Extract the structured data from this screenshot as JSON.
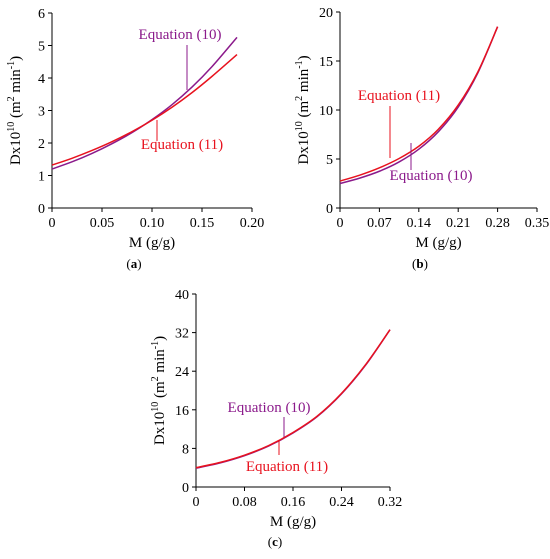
{
  "colors": {
    "equation_10": "#8B1A8B",
    "equation_11": "#E8121E",
    "axis": "#000000"
  },
  "chart_data": [
    {
      "type": "line",
      "panel_caption": "a",
      "xlabel": "M (g/g)",
      "ylabel_prefix": "Dx10",
      "ylabel_exp": "10",
      "ylabel_unit": " (m",
      "ylabel_unit_exp": "2",
      "ylabel_unit_mid": " min",
      "ylabel_unit_exp2": "-1",
      "ylabel_close": ")",
      "xlim": [
        0,
        0.2
      ],
      "ylim": [
        0,
        6
      ],
      "xticks": [
        "0",
        "0.05",
        "0.10",
        "0.15",
        "0.20"
      ],
      "yticks": [
        "0",
        "1",
        "2",
        "3",
        "4",
        "5",
        "6"
      ],
      "series": [
        {
          "name": "Equation (10)",
          "x": [
            0,
            0.02,
            0.04,
            0.06,
            0.08,
            0.1,
            0.12,
            0.14,
            0.16,
            0.185
          ],
          "y": [
            1.2,
            1.42,
            1.68,
            1.98,
            2.32,
            2.72,
            3.18,
            3.72,
            4.35,
            5.25
          ]
        },
        {
          "name": "Equation (11)",
          "x": [
            0,
            0.02,
            0.04,
            0.06,
            0.08,
            0.1,
            0.12,
            0.14,
            0.16,
            0.185
          ],
          "y": [
            1.32,
            1.53,
            1.77,
            2.04,
            2.35,
            2.7,
            3.1,
            3.55,
            4.05,
            4.72
          ]
        }
      ],
      "annotations": [
        {
          "text": "Equation (10)",
          "series": 0
        },
        {
          "text": "Equation (11)",
          "series": 1
        }
      ]
    },
    {
      "type": "line",
      "panel_caption": "b",
      "xlabel": "M (g/g)",
      "ylabel_prefix": "Dx10",
      "ylabel_exp": "10",
      "ylabel_unit": " (m",
      "ylabel_unit_exp": "2",
      "ylabel_unit_mid": " min",
      "ylabel_unit_exp2": "-1",
      "ylabel_close": ")",
      "xlim": [
        0,
        0.35
      ],
      "ylim": [
        0,
        20
      ],
      "xticks": [
        "0",
        "0.07",
        "0.14",
        "0.21",
        "0.28",
        "0.35"
      ],
      "yticks": [
        "0",
        "5",
        "10",
        "15",
        "20"
      ],
      "series": [
        {
          "name": "Equation (10)",
          "x": [
            0,
            0.035,
            0.07,
            0.105,
            0.14,
            0.175,
            0.21,
            0.245,
            0.28
          ],
          "y": [
            2.5,
            3.05,
            3.75,
            4.7,
            6.0,
            7.8,
            10.3,
            13.8,
            18.5
          ]
        },
        {
          "name": "Equation (11)",
          "x": [
            0,
            0.035,
            0.07,
            0.105,
            0.14,
            0.175,
            0.21,
            0.245,
            0.28
          ],
          "y": [
            2.75,
            3.35,
            4.1,
            5.05,
            6.3,
            8.05,
            10.5,
            13.9,
            18.5
          ]
        }
      ],
      "annotations": [
        {
          "text": "Equation (11)",
          "series": 1
        },
        {
          "text": "Equation (10)",
          "series": 0
        }
      ]
    },
    {
      "type": "line",
      "panel_caption": "c",
      "xlabel": "M (g/g)",
      "ylabel_prefix": "Dx10",
      "ylabel_exp": "10",
      "ylabel_unit": " (m",
      "ylabel_unit_exp": "2",
      "ylabel_unit_mid": " min",
      "ylabel_unit_exp2": "-1",
      "ylabel_close": ")",
      "xlim": [
        0,
        0.32
      ],
      "ylim": [
        0,
        40
      ],
      "xticks": [
        "0",
        "0.08",
        "0.16",
        "0.24",
        "0.32"
      ],
      "yticks": [
        "0",
        "8",
        "16",
        "24",
        "32",
        "40"
      ],
      "series": [
        {
          "name": "Equation (10)",
          "x": [
            0,
            0.04,
            0.08,
            0.12,
            0.16,
            0.2,
            0.24,
            0.28,
            0.32
          ],
          "y": [
            3.9,
            5.0,
            6.5,
            8.5,
            11.2,
            14.6,
            19.3,
            25.3,
            32.6
          ]
        },
        {
          "name": "Equation (11)",
          "x": [
            0,
            0.04,
            0.08,
            0.12,
            0.16,
            0.2,
            0.24,
            0.28,
            0.32
          ],
          "y": [
            4.0,
            5.1,
            6.6,
            8.6,
            11.3,
            14.7,
            19.4,
            25.4,
            32.6
          ]
        }
      ],
      "annotations": [
        {
          "text": "Equation (10)",
          "series": 0
        },
        {
          "text": "Equation (11)",
          "series": 1
        }
      ]
    }
  ]
}
